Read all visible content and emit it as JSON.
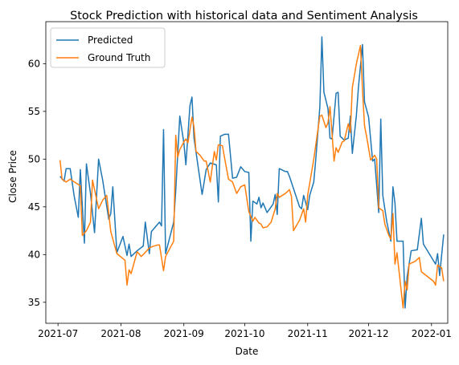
{
  "chart_data": {
    "type": "line",
    "title": "Stock Prediction with historical data and Sentiment Analysis",
    "xlabel": "Date",
    "ylabel": "Close Price",
    "xlim": [
      "2021-06-25",
      "2022-01-09"
    ],
    "ylim": [
      32.8,
      64.4
    ],
    "x_ticks": [
      "2021-07",
      "2021-08",
      "2021-09",
      "2021-10",
      "2021-11",
      "2021-12",
      "2022-01"
    ],
    "y_ticks": [
      35,
      40,
      45,
      50,
      55,
      60
    ],
    "legend_position": "top-left",
    "grid": false,
    "series": [
      {
        "name": "Predicted",
        "color": "#1f77b4",
        "points": [
          [
            "2021-07-02",
            48.2
          ],
          [
            "2021-07-04",
            47.7
          ],
          [
            "2021-07-05",
            49.0
          ],
          [
            "2021-07-07",
            49.0
          ],
          [
            "2021-07-09",
            46.1
          ],
          [
            "2021-07-11",
            43.9
          ],
          [
            "2021-07-12",
            48.9
          ],
          [
            "2021-07-14",
            41.2
          ],
          [
            "2021-07-15",
            49.5
          ],
          [
            "2021-07-17",
            46.4
          ],
          [
            "2021-07-19",
            42.3
          ],
          [
            "2021-07-21",
            50.0
          ],
          [
            "2021-07-23",
            47.8
          ],
          [
            "2021-07-26",
            43.7
          ],
          [
            "2021-07-27",
            44.3
          ],
          [
            "2021-07-28",
            47.1
          ],
          [
            "2021-07-30",
            40.2
          ],
          [
            "2021-08-02",
            41.9
          ],
          [
            "2021-08-04",
            39.9
          ],
          [
            "2021-08-05",
            41.1
          ],
          [
            "2021-08-06",
            39.8
          ],
          [
            "2021-08-09",
            40.4
          ],
          [
            "2021-08-12",
            40.9
          ],
          [
            "2021-08-13",
            43.4
          ],
          [
            "2021-08-15",
            40.1
          ],
          [
            "2021-08-16",
            42.4
          ],
          [
            "2021-08-20",
            43.4
          ],
          [
            "2021-08-21",
            43.0
          ],
          [
            "2021-08-22",
            53.1
          ],
          [
            "2021-08-23",
            40.1
          ],
          [
            "2021-08-27",
            43.4
          ],
          [
            "2021-08-28",
            46.7
          ],
          [
            "2021-08-30",
            54.5
          ],
          [
            "2021-09-01",
            51.7
          ],
          [
            "2021-09-02",
            49.4
          ],
          [
            "2021-09-04",
            55.6
          ],
          [
            "2021-09-05",
            56.5
          ],
          [
            "2021-09-06",
            52.2
          ],
          [
            "2021-09-10",
            46.3
          ],
          [
            "2021-09-12",
            48.9
          ],
          [
            "2021-09-14",
            49.6
          ],
          [
            "2021-09-17",
            49.4
          ],
          [
            "2021-09-18",
            45.5
          ],
          [
            "2021-09-19",
            52.4
          ],
          [
            "2021-09-21",
            52.6
          ],
          [
            "2021-09-23",
            52.6
          ],
          [
            "2021-09-25",
            48.0
          ],
          [
            "2021-09-27",
            48.1
          ],
          [
            "2021-09-29",
            49.2
          ],
          [
            "2021-10-01",
            48.7
          ],
          [
            "2021-10-03",
            48.6
          ],
          [
            "2021-10-04",
            41.4
          ],
          [
            "2021-10-05",
            45.6
          ],
          [
            "2021-10-07",
            45.3
          ],
          [
            "2021-10-08",
            46.0
          ],
          [
            "2021-10-09",
            44.9
          ],
          [
            "2021-10-10",
            45.4
          ],
          [
            "2021-10-12",
            44.4
          ],
          [
            "2021-10-15",
            45.3
          ],
          [
            "2021-10-16",
            46.3
          ],
          [
            "2021-10-17",
            44.2
          ],
          [
            "2021-10-18",
            49.0
          ],
          [
            "2021-10-21",
            48.7
          ],
          [
            "2021-10-22",
            48.7
          ],
          [
            "2021-10-23",
            48.2
          ],
          [
            "2021-10-28",
            45.0
          ],
          [
            "2021-10-29",
            44.8
          ],
          [
            "2021-10-30",
            46.2
          ],
          [
            "2021-11-01",
            44.7
          ],
          [
            "2021-11-02",
            46.2
          ],
          [
            "2021-11-04",
            47.6
          ],
          [
            "2021-11-05",
            50.0
          ],
          [
            "2021-11-07",
            55.5
          ],
          [
            "2021-11-08",
            62.8
          ],
          [
            "2021-11-09",
            57.0
          ],
          [
            "2021-11-11",
            55.3
          ],
          [
            "2021-11-12",
            52.2
          ],
          [
            "2021-11-13",
            52.1
          ],
          [
            "2021-11-15",
            56.9
          ],
          [
            "2021-11-16",
            57.0
          ],
          [
            "2021-11-17",
            52.4
          ],
          [
            "2021-11-19",
            52.0
          ],
          [
            "2021-11-21",
            52.2
          ],
          [
            "2021-11-22",
            54.5
          ],
          [
            "2021-11-23",
            50.6
          ],
          [
            "2021-11-25",
            54.6
          ],
          [
            "2021-11-26",
            57.5
          ],
          [
            "2021-11-28",
            62.0
          ],
          [
            "2021-11-29",
            56.0
          ],
          [
            "2021-12-01",
            54.4
          ],
          [
            "2021-12-03",
            49.8
          ],
          [
            "2021-12-04",
            50.0
          ],
          [
            "2021-12-06",
            44.4
          ],
          [
            "2021-12-07",
            54.2
          ],
          [
            "2021-12-08",
            46.2
          ],
          [
            "2021-12-10",
            43.4
          ],
          [
            "2021-12-12",
            41.4
          ],
          [
            "2021-12-13",
            47.1
          ],
          [
            "2021-12-14",
            45.4
          ],
          [
            "2021-12-15",
            41.4
          ],
          [
            "2021-12-18",
            41.4
          ],
          [
            "2021-12-19",
            34.4
          ],
          [
            "2021-12-20",
            37.7
          ],
          [
            "2021-12-22",
            40.4
          ],
          [
            "2021-12-25",
            40.5
          ],
          [
            "2021-12-27",
            43.8
          ],
          [
            "2021-12-28",
            41.1
          ],
          [
            "2022-01-03",
            39.0
          ],
          [
            "2022-01-04",
            40.1
          ],
          [
            "2022-01-05",
            37.8
          ],
          [
            "2022-01-07",
            42.1
          ]
        ]
      },
      {
        "name": "Ground Truth",
        "color": "#ff7f0e",
        "points": [
          [
            "2021-07-02",
            49.9
          ],
          [
            "2021-07-03",
            47.9
          ],
          [
            "2021-07-05",
            47.6
          ],
          [
            "2021-07-07",
            47.9
          ],
          [
            "2021-07-12",
            47.2
          ],
          [
            "2021-07-13",
            42.0
          ],
          [
            "2021-07-15",
            42.5
          ],
          [
            "2021-07-17",
            43.4
          ],
          [
            "2021-07-18",
            47.8
          ],
          [
            "2021-07-21",
            44.8
          ],
          [
            "2021-07-23",
            45.7
          ],
          [
            "2021-07-25",
            46.2
          ],
          [
            "2021-07-27",
            42.4
          ],
          [
            "2021-07-30",
            40.1
          ],
          [
            "2021-08-03",
            39.4
          ],
          [
            "2021-08-04",
            36.8
          ],
          [
            "2021-08-05",
            38.4
          ],
          [
            "2021-08-06",
            38.0
          ],
          [
            "2021-08-09",
            40.3
          ],
          [
            "2021-08-11",
            39.8
          ],
          [
            "2021-08-12",
            40.0
          ],
          [
            "2021-08-15",
            40.7
          ],
          [
            "2021-08-16",
            40.8
          ],
          [
            "2021-08-19",
            41.0
          ],
          [
            "2021-08-20",
            41.0
          ],
          [
            "2021-08-22",
            38.3
          ],
          [
            "2021-08-23",
            39.8
          ],
          [
            "2021-08-27",
            41.4
          ],
          [
            "2021-08-28",
            52.5
          ],
          [
            "2021-08-29",
            50.2
          ],
          [
            "2021-08-30",
            51.0
          ],
          [
            "2021-09-01",
            51.8
          ],
          [
            "2021-09-02",
            52.1
          ],
          [
            "2021-09-03",
            51.7
          ],
          [
            "2021-09-05",
            54.4
          ],
          [
            "2021-09-06",
            53.4
          ],
          [
            "2021-09-07",
            50.8
          ],
          [
            "2021-09-09",
            50.4
          ],
          [
            "2021-09-11",
            49.8
          ],
          [
            "2021-09-12",
            49.8
          ],
          [
            "2021-09-14",
            47.6
          ],
          [
            "2021-09-16",
            50.8
          ],
          [
            "2021-09-17",
            49.9
          ],
          [
            "2021-09-18",
            51.5
          ],
          [
            "2021-09-20",
            51.4
          ],
          [
            "2021-09-21",
            50.2
          ],
          [
            "2021-09-23",
            47.9
          ],
          [
            "2021-09-25",
            47.6
          ],
          [
            "2021-09-27",
            46.4
          ],
          [
            "2021-09-29",
            47.1
          ],
          [
            "2021-10-01",
            47.3
          ],
          [
            "2021-10-03",
            44.5
          ],
          [
            "2021-10-05",
            43.5
          ],
          [
            "2021-10-06",
            43.9
          ],
          [
            "2021-10-08",
            43.3
          ],
          [
            "2021-10-09",
            43.2
          ],
          [
            "2021-10-10",
            42.8
          ],
          [
            "2021-10-12",
            42.9
          ],
          [
            "2021-10-14",
            43.4
          ],
          [
            "2021-10-16",
            44.8
          ],
          [
            "2021-10-17",
            46.4
          ],
          [
            "2021-10-18",
            46.0
          ],
          [
            "2021-10-21",
            46.4
          ],
          [
            "2021-10-23",
            46.8
          ],
          [
            "2021-10-24",
            46.1
          ],
          [
            "2021-10-25",
            42.5
          ],
          [
            "2021-10-28",
            43.6
          ],
          [
            "2021-10-30",
            44.8
          ],
          [
            "2021-10-31",
            43.4
          ],
          [
            "2021-11-01",
            46.2
          ],
          [
            "2021-11-04",
            50.0
          ],
          [
            "2021-11-06",
            53.0
          ],
          [
            "2021-11-07",
            54.5
          ],
          [
            "2021-11-08",
            54.6
          ],
          [
            "2021-11-10",
            53.3
          ],
          [
            "2021-11-11",
            53.8
          ],
          [
            "2021-11-12",
            55.5
          ],
          [
            "2021-11-14",
            49.8
          ],
          [
            "2021-11-15",
            51.2
          ],
          [
            "2021-11-16",
            50.7
          ],
          [
            "2021-11-18",
            51.8
          ],
          [
            "2021-11-19",
            51.9
          ],
          [
            "2021-11-21",
            53.7
          ],
          [
            "2021-11-22",
            52.8
          ],
          [
            "2021-11-23",
            57.5
          ],
          [
            "2021-11-25",
            60.0
          ],
          [
            "2021-11-27",
            61.9
          ],
          [
            "2021-11-28",
            57.3
          ],
          [
            "2021-11-29",
            53.5
          ],
          [
            "2021-11-30",
            52.4
          ],
          [
            "2021-12-02",
            49.9
          ],
          [
            "2021-12-04",
            50.4
          ],
          [
            "2021-12-05",
            50.0
          ],
          [
            "2021-12-06",
            44.9
          ],
          [
            "2021-12-08",
            44.6
          ],
          [
            "2021-12-09",
            43.2
          ],
          [
            "2021-12-11",
            42.0
          ],
          [
            "2021-12-12",
            41.6
          ],
          [
            "2021-12-13",
            44.3
          ],
          [
            "2021-12-14",
            39.0
          ],
          [
            "2021-12-15",
            40.2
          ],
          [
            "2021-12-18",
            34.4
          ],
          [
            "2021-12-19",
            37.2
          ],
          [
            "2021-12-20",
            36.3
          ],
          [
            "2021-12-21",
            39.0
          ],
          [
            "2021-12-24",
            39.3
          ],
          [
            "2021-12-26",
            39.7
          ],
          [
            "2021-12-27",
            38.2
          ],
          [
            "2022-01-02",
            37.2
          ],
          [
            "2022-01-03",
            36.8
          ],
          [
            "2022-01-04",
            38.9
          ],
          [
            "2022-01-06",
            38.6
          ],
          [
            "2022-01-07",
            37.2
          ]
        ]
      }
    ]
  }
}
